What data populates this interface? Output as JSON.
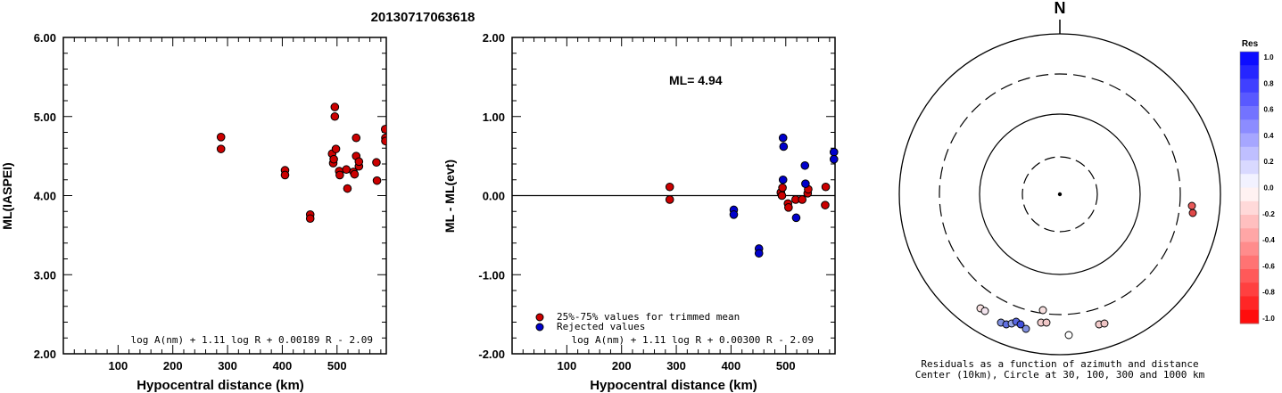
{
  "title": "20130717063618",
  "colors": {
    "red": "#cc0000",
    "blue": "#0000cc",
    "black": "#000000"
  },
  "chart_data": [
    {
      "type": "scatter",
      "name": "left",
      "ylabel": "ML(IASPEI)",
      "xlabel": "Hypocentral distance (km)",
      "xlim": [
        0,
        590
      ],
      "ylim": [
        2.0,
        6.0
      ],
      "xticks": [
        100,
        200,
        300,
        400,
        500
      ],
      "yticks": [
        2.0,
        3.0,
        4.0,
        5.0,
        6.0
      ],
      "ytick_labels": [
        "2.00",
        "3.00",
        "4.00",
        "5.00",
        "6.00"
      ],
      "formula": "log A(nm) + 1.11 log R + 0.00189 R - 2.09",
      "points": [
        [
          288,
          4.74
        ],
        [
          288,
          4.59
        ],
        [
          405,
          4.32
        ],
        [
          405,
          4.26
        ],
        [
          451,
          3.76
        ],
        [
          451,
          3.71
        ],
        [
          491,
          4.53
        ],
        [
          493,
          4.41
        ],
        [
          494,
          4.46
        ],
        [
          496,
          5.12
        ],
        [
          496,
          5.0
        ],
        [
          498,
          4.59
        ],
        [
          504,
          4.31
        ],
        [
          505,
          4.26
        ],
        [
          517,
          4.33
        ],
        [
          519,
          4.09
        ],
        [
          530,
          4.3
        ],
        [
          532,
          4.27
        ],
        [
          535,
          4.73
        ],
        [
          535,
          4.5
        ],
        [
          540,
          4.37
        ],
        [
          540,
          4.43
        ],
        [
          572,
          4.42
        ],
        [
          573,
          4.19
        ],
        [
          588,
          4.84
        ],
        [
          589,
          4.73
        ],
        [
          591,
          4.69
        ]
      ]
    },
    {
      "type": "scatter",
      "name": "middle",
      "ylabel": "ML - ML(evt)",
      "xlabel": "Hypocentral distance (km)",
      "xlim": [
        0,
        590
      ],
      "ylim": [
        -2.0,
        2.0
      ],
      "xticks": [
        100,
        200,
        300,
        400,
        500
      ],
      "yticks": [
        -2.0,
        -1.0,
        0.0,
        1.0,
        2.0
      ],
      "ytick_labels": [
        "-2.00",
        "-1.00",
        "0.00",
        "1.00",
        "2.00"
      ],
      "annotation": "ML= 4.94",
      "formula": "log A(nm) + 1.11 log R + 0.00300 R - 2.09",
      "legend": [
        "25%-75% values for trimmed mean",
        "Rejected values"
      ],
      "points_red": [
        [
          288,
          0.11
        ],
        [
          288,
          -0.05
        ],
        [
          491,
          0.04
        ],
        [
          493,
          0.0
        ],
        [
          494,
          0.1
        ],
        [
          504,
          -0.1
        ],
        [
          505,
          -0.15
        ],
        [
          518,
          -0.05
        ],
        [
          530,
          -0.05
        ],
        [
          540,
          0.03
        ],
        [
          541,
          0.08
        ],
        [
          572,
          -0.12
        ],
        [
          573,
          0.11
        ]
      ],
      "points_blue": [
        [
          405,
          -0.18
        ],
        [
          405,
          -0.24
        ],
        [
          451,
          -0.67
        ],
        [
          451,
          -0.73
        ],
        [
          495,
          0.73
        ],
        [
          496,
          0.62
        ],
        [
          495,
          0.2
        ],
        [
          519,
          -0.28
        ],
        [
          535,
          0.38
        ],
        [
          536,
          0.15
        ],
        [
          588,
          0.55
        ],
        [
          588,
          0.46
        ]
      ]
    },
    {
      "type": "polar",
      "name": "right",
      "north_label": "N",
      "caption_line1": "Residuals as a function of azimuth and distance",
      "caption_line2": "Center (10km), Circle at 30, 100, 300 and 1000 km",
      "colorbar_title": "Res",
      "colorbar_labels": [
        "1.0",
        "0.8",
        "0.6",
        "0.4",
        "0.2",
        "0.0",
        "-0.2",
        "-0.4",
        "-0.6",
        "-0.8",
        "-1.0"
      ],
      "stations": [
        [
          1336,
          231,
          0.12,
          "#e85a5a"
        ],
        [
          1337,
          239,
          0.14,
          "#e04848"
        ],
        [
          1099,
          346,
          0.02,
          "#f7e0e0"
        ],
        [
          1104,
          349,
          -0.02,
          "#f3e4ee"
        ],
        [
          1122,
          362,
          -0.4,
          "#8090e0"
        ],
        [
          1128,
          364,
          -0.45,
          "#6070e0"
        ],
        [
          1134,
          363,
          -0.35,
          "#98a8ea"
        ],
        [
          1139,
          361,
          -0.5,
          "#5866e0"
        ],
        [
          1144,
          364,
          -0.6,
          "#4050dd"
        ],
        [
          1150,
          369,
          -0.4,
          "#8090e0"
        ],
        [
          1169,
          348,
          0.03,
          "#f5dede"
        ],
        [
          1167,
          362,
          0.05,
          "#f2cece"
        ],
        [
          1173,
          362,
          0.06,
          "#f0c8c8"
        ],
        [
          1198,
          376,
          0.0,
          "#ffffff"
        ],
        [
          1232,
          364,
          0.08,
          "#f3cccc"
        ],
        [
          1238,
          363,
          0.07,
          "#efc4c4"
        ]
      ]
    }
  ]
}
